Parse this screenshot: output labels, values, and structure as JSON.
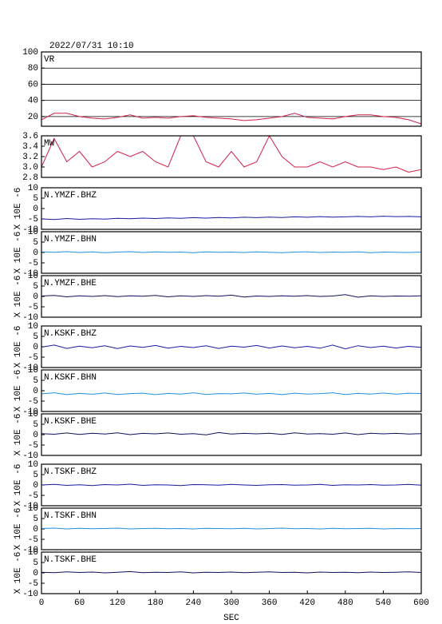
{
  "chart_data": [
    {
      "type": "line",
      "title": "2022/07/31 10:10",
      "label": "VR",
      "color": "#d0204a",
      "grid": true,
      "xlim": [
        0,
        600
      ],
      "ylim": [
        8,
        100
      ],
      "yticks": [
        20,
        40,
        60,
        80,
        100
      ],
      "x": [
        0,
        20,
        40,
        60,
        80,
        100,
        120,
        140,
        160,
        180,
        200,
        220,
        240,
        260,
        280,
        300,
        320,
        340,
        360,
        380,
        400,
        420,
        440,
        460,
        480,
        500,
        520,
        540,
        560,
        580,
        600
      ],
      "values": [
        16,
        24,
        24,
        20,
        18,
        17,
        19,
        22,
        18,
        19,
        18,
        20,
        21,
        19,
        18,
        17,
        15,
        16,
        18,
        20,
        24,
        19,
        18,
        17,
        20,
        22,
        22,
        20,
        19,
        16,
        11
      ]
    },
    {
      "type": "line",
      "label": "MW",
      "color": "#d0204a",
      "grid": false,
      "xlim": [
        0,
        600
      ],
      "ylim": [
        2.8,
        3.6
      ],
      "yticks": [
        {
          "value": 2.8,
          "label": "2.8"
        },
        {
          "value": 3.0,
          "label": "3.0"
        },
        {
          "value": 3.2,
          "label": "3.2"
        },
        {
          "value": 3.4,
          "label": "3.4"
        },
        {
          "value": 3.6,
          "label": "3.6"
        }
      ],
      "x": [
        0,
        20,
        40,
        60,
        80,
        100,
        120,
        140,
        160,
        180,
        200,
        220,
        240,
        260,
        280,
        300,
        320,
        340,
        360,
        380,
        400,
        420,
        440,
        460,
        480,
        500,
        520,
        540,
        560,
        580,
        600
      ],
      "values": [
        3.0,
        3.55,
        3.1,
        3.3,
        3.0,
        3.1,
        3.3,
        3.2,
        3.3,
        3.1,
        3.0,
        3.6,
        3.6,
        3.1,
        3.0,
        3.3,
        3.0,
        3.1,
        3.6,
        3.2,
        3.0,
        3.0,
        3.1,
        3.0,
        3.1,
        3.0,
        3.0,
        2.95,
        3.0,
        2.9,
        2.95
      ]
    },
    {
      "type": "line",
      "label": "N.YMZF.BHZ",
      "ylabel": "X 10E -6",
      "color": "#1a1aa0",
      "grid": false,
      "xlim": [
        0,
        600
      ],
      "ylim": [
        -10,
        10
      ],
      "yticks": [
        -10,
        -5,
        0,
        5,
        10
      ],
      "x": [
        0,
        20,
        40,
        60,
        80,
        100,
        120,
        140,
        160,
        180,
        200,
        220,
        240,
        260,
        280,
        300,
        320,
        340,
        360,
        380,
        400,
        420,
        440,
        460,
        480,
        500,
        520,
        540,
        560,
        580,
        600
      ],
      "values": [
        -5,
        -5.3,
        -4.8,
        -5.2,
        -4.9,
        -5.1,
        -4.7,
        -4.9,
        -4.6,
        -4.8,
        -4.5,
        -4.7,
        -4.4,
        -4.6,
        -4.3,
        -4.5,
        -4.2,
        -4.4,
        -4.1,
        -4.3,
        -4.0,
        -4.2,
        -3.9,
        -4.1,
        -4.0,
        -3.8,
        -4.0,
        -3.7,
        -3.9,
        -3.8,
        -4.0
      ]
    },
    {
      "type": "line",
      "label": "N.YMZF.BHN",
      "ylabel": "X 10E -6",
      "color": "#2090e0",
      "grid": false,
      "xlim": [
        0,
        600
      ],
      "ylim": [
        -10,
        10
      ],
      "yticks": [
        -10,
        -5,
        0,
        5,
        10
      ],
      "x": [
        0,
        20,
        40,
        60,
        80,
        100,
        120,
        140,
        160,
        180,
        200,
        220,
        240,
        260,
        280,
        300,
        320,
        340,
        360,
        380,
        400,
        420,
        440,
        460,
        480,
        500,
        520,
        540,
        560,
        580,
        600
      ],
      "values": [
        0.3,
        0.1,
        0.4,
        0,
        0.3,
        -0.1,
        0.2,
        0.4,
        0,
        0.3,
        0.1,
        0.2,
        -0.1,
        0.3,
        0.1,
        0.2,
        0,
        0.3,
        0.1,
        -0.1,
        0.2,
        0.3,
        0,
        0.2,
        0.1,
        0.3,
        -0.1,
        0.2,
        0.1,
        0,
        0.2
      ]
    },
    {
      "type": "line",
      "label": "N.YMZF.BHE",
      "ylabel": "X 10E -6",
      "color": "#101060",
      "grid": false,
      "xlim": [
        0,
        600
      ],
      "ylim": [
        -10,
        10
      ],
      "yticks": [
        -10,
        -5,
        0,
        5,
        10
      ],
      "x": [
        0,
        20,
        40,
        60,
        80,
        100,
        120,
        140,
        160,
        180,
        200,
        220,
        240,
        260,
        280,
        300,
        320,
        340,
        360,
        380,
        400,
        420,
        440,
        460,
        480,
        500,
        520,
        540,
        560,
        580,
        600
      ],
      "values": [
        0.2,
        0.5,
        -0.2,
        0.3,
        0,
        0.4,
        -0.1,
        0.3,
        0.1,
        0.5,
        -0.2,
        0.3,
        0,
        0.4,
        0.1,
        0.6,
        -0.3,
        0.2,
        0,
        0.3,
        0.1,
        0.4,
        0,
        0.2,
        0.9,
        -0.4,
        0.3,
        0,
        0.2,
        0.1,
        0.3
      ]
    },
    {
      "type": "line",
      "label": "N.KSKF.BHZ",
      "ylabel": "X 10E -6",
      "color": "#1a1aa0",
      "grid": false,
      "xlim": [
        0,
        600
      ],
      "ylim": [
        -10,
        10
      ],
      "yticks": [
        -10,
        -5,
        0,
        5,
        10
      ],
      "x": [
        0,
        20,
        40,
        60,
        80,
        100,
        120,
        140,
        160,
        180,
        200,
        220,
        240,
        260,
        280,
        300,
        320,
        340,
        360,
        380,
        400,
        420,
        440,
        460,
        480,
        500,
        520,
        540,
        560,
        580,
        600
      ],
      "values": [
        -0.2,
        0.8,
        -0.8,
        0.3,
        -0.5,
        0.5,
        -0.9,
        0.4,
        -0.3,
        0.6,
        -0.7,
        0.2,
        -0.4,
        0.5,
        -0.8,
        0.3,
        -0.2,
        0.6,
        -0.6,
        0.4,
        -0.5,
        0.2,
        -0.7,
        0.8,
        -1.0,
        0.5,
        -0.4,
        0.3,
        -0.6,
        0.2,
        -0.3
      ]
    },
    {
      "type": "line",
      "label": "N.KSKF.BHN",
      "ylabel": "X 10E -6",
      "color": "#2090e0",
      "grid": false,
      "xlim": [
        0,
        600
      ],
      "ylim": [
        -10,
        10
      ],
      "yticks": [
        -10,
        -5,
        0,
        5,
        10
      ],
      "x": [
        0,
        20,
        40,
        60,
        80,
        100,
        120,
        140,
        160,
        180,
        200,
        220,
        240,
        260,
        280,
        300,
        320,
        340,
        360,
        380,
        400,
        420,
        440,
        460,
        480,
        500,
        520,
        540,
        560,
        580,
        600
      ],
      "values": [
        -1.5,
        -1.0,
        -1.9,
        -1.3,
        -1.7,
        -1.1,
        -1.8,
        -1.4,
        -1.2,
        -1.9,
        -1.3,
        -1.6,
        -1.0,
        -1.8,
        -1.4,
        -1.5,
        -1.1,
        -1.7,
        -1.3,
        -1.9,
        -1.2,
        -1.6,
        -1.4,
        -1.0,
        -1.8,
        -1.3,
        -1.6,
        -1.1,
        -1.7,
        -1.2,
        -1.4
      ]
    },
    {
      "type": "line",
      "label": "N.KSKF.BHE",
      "ylabel": "X 10E -6",
      "color": "#101060",
      "grid": false,
      "xlim": [
        0,
        600
      ],
      "ylim": [
        -10,
        10
      ],
      "yticks": [
        -10,
        -5,
        0,
        5,
        10
      ],
      "x": [
        0,
        20,
        40,
        60,
        80,
        100,
        120,
        140,
        160,
        180,
        200,
        220,
        240,
        260,
        280,
        300,
        320,
        340,
        360,
        380,
        400,
        420,
        440,
        460,
        480,
        500,
        520,
        540,
        560,
        580,
        600
      ],
      "values": [
        0.5,
        0.2,
        0.8,
        0.1,
        0.7,
        0.3,
        0.9,
        0,
        0.6,
        0.4,
        0.8,
        0.2,
        0.5,
        -0.1,
        1.0,
        0.3,
        0.6,
        0.4,
        0.7,
        0.1,
        0.9,
        0.3,
        0.5,
        0.2,
        0.8,
        0,
        0.7,
        0.4,
        0.6,
        0.3,
        0.5
      ]
    },
    {
      "type": "line",
      "label": "N.TSKF.BHZ",
      "ylabel": "X 10E -6",
      "color": "#1a1aa0",
      "grid": false,
      "xlim": [
        0,
        600
      ],
      "ylim": [
        -10,
        10
      ],
      "yticks": [
        -10,
        -5,
        0,
        5,
        10
      ],
      "x": [
        0,
        20,
        40,
        60,
        80,
        100,
        120,
        140,
        160,
        180,
        200,
        220,
        240,
        260,
        280,
        300,
        320,
        340,
        360,
        380,
        400,
        420,
        440,
        460,
        480,
        500,
        520,
        540,
        560,
        580,
        600
      ],
      "values": [
        0,
        0.3,
        -0.2,
        0.1,
        -0.3,
        0.2,
        0,
        0.4,
        -0.2,
        0.1,
        0,
        -0.3,
        0.2,
        0.1,
        -0.1,
        0.3,
        0,
        -0.2,
        0.1,
        0.2,
        -0.1,
        0,
        0.3,
        -0.2,
        0.1,
        0,
        0.2,
        -0.1,
        0,
        0.3,
        -0.1
      ]
    },
    {
      "type": "line",
      "label": "N.TSKF.BHN",
      "ylabel": "X 10E -6",
      "color": "#2090e0",
      "grid": false,
      "xlim": [
        0,
        600
      ],
      "ylim": [
        -10,
        10
      ],
      "yticks": [
        -10,
        -5,
        0,
        5,
        10
      ],
      "x": [
        0,
        20,
        40,
        60,
        80,
        100,
        120,
        140,
        160,
        180,
        200,
        220,
        240,
        260,
        280,
        300,
        320,
        340,
        360,
        380,
        400,
        420,
        440,
        460,
        480,
        500,
        520,
        540,
        560,
        580,
        600
      ],
      "values": [
        0.2,
        0.4,
        0,
        0.3,
        0.1,
        0.2,
        0.4,
        0,
        0.2,
        0.3,
        0.1,
        0.2,
        0,
        0.3,
        0.2,
        0.1,
        0.3,
        0,
        0.2,
        0.4,
        0.1,
        0.2,
        0,
        0.3,
        0.1,
        0.2,
        0.3,
        0,
        0.2,
        0.1,
        0.2
      ]
    },
    {
      "type": "line",
      "label": "N.TSKF.BHE",
      "ylabel": "X 10E -6",
      "color": "#101060",
      "grid": false,
      "xlim": [
        0,
        600
      ],
      "ylim": [
        -10,
        10
      ],
      "yticks": [
        -10,
        -5,
        0,
        5,
        10
      ],
      "xticks": [
        0,
        60,
        120,
        180,
        240,
        300,
        360,
        420,
        480,
        540,
        600
      ],
      "xlabel": "SEC",
      "x": [
        0,
        20,
        40,
        60,
        80,
        100,
        120,
        140,
        160,
        180,
        200,
        220,
        240,
        260,
        280,
        300,
        320,
        340,
        360,
        380,
        400,
        420,
        440,
        460,
        480,
        500,
        520,
        540,
        560,
        580,
        600
      ],
      "values": [
        0.3,
        0.1,
        0.5,
        0.2,
        0.4,
        0,
        0.3,
        0.6,
        0.1,
        0.3,
        0.2,
        0.5,
        0,
        0.3,
        0.2,
        0.4,
        0.1,
        0.3,
        0.5,
        0.2,
        0.3,
        0,
        0.4,
        0.2,
        0.3,
        0.1,
        0.4,
        0.2,
        0.3,
        0.5,
        0.2
      ]
    }
  ]
}
